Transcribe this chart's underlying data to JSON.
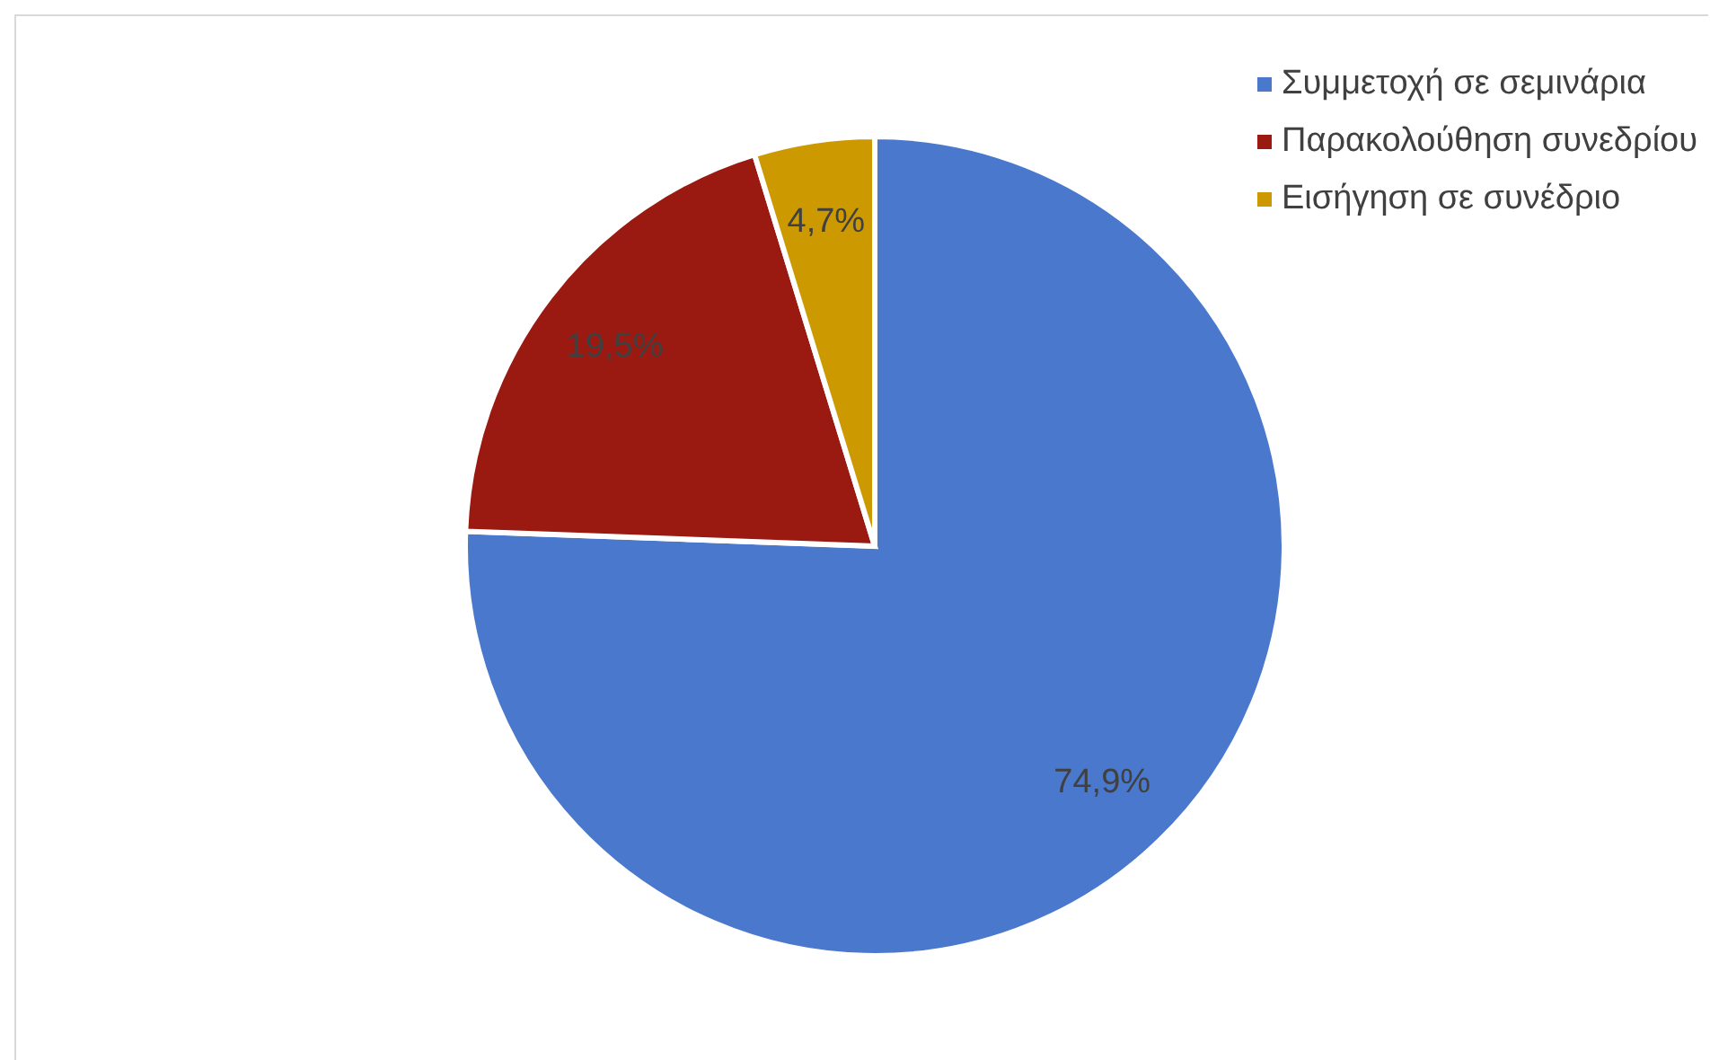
{
  "chart_data": {
    "type": "pie",
    "categories": [
      "Συμμετοχή σε σεμινάρια",
      "Παρακολούθηση συνεδρίου",
      "Εισήγηση σε συνέδριο"
    ],
    "values": [
      74.9,
      19.5,
      4.7
    ],
    "colors": [
      "#4a78cc",
      "#9a1a12",
      "#cc9a00"
    ],
    "value_labels": [
      "74,9%",
      "19,5%",
      "4,7%"
    ],
    "legend": "top right"
  }
}
